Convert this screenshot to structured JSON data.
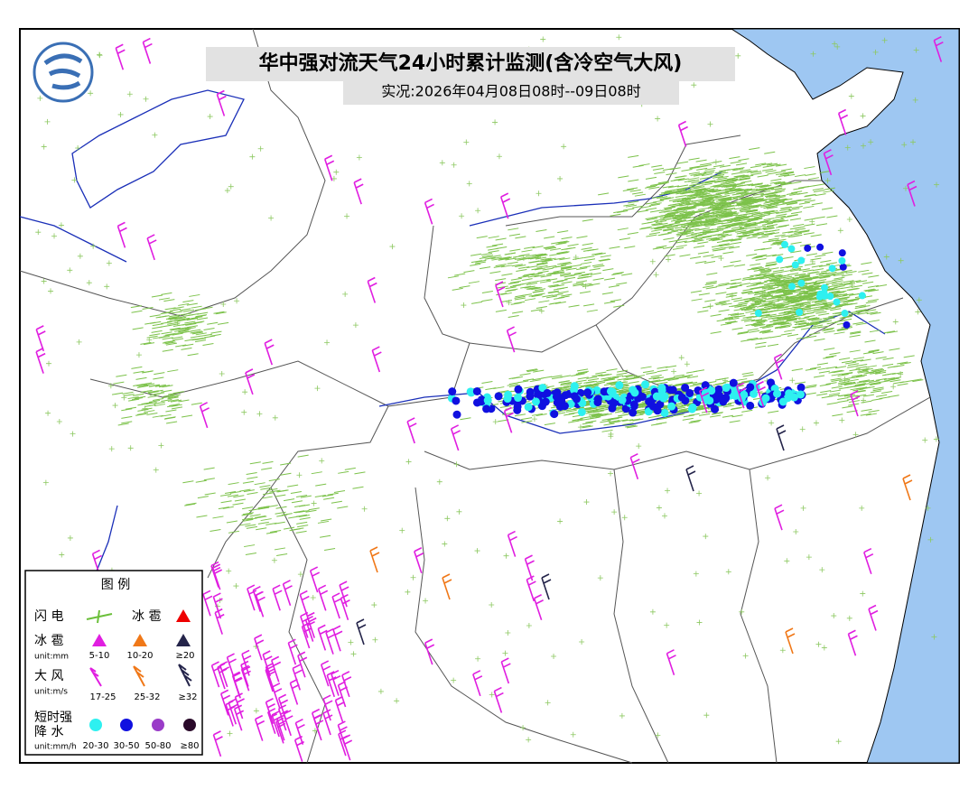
{
  "header": {
    "title": "华中强对流天气24小时累计监测(含冷空气大风)",
    "subtitle": "实况:2026年04月08日08时--09日08时"
  },
  "legend": {
    "title": "图 例",
    "lightning": "闪 电",
    "hail": "冰 雹",
    "hail_size": {
      "label": "冰 雹",
      "unit": "unit:mm",
      "classes": [
        "5-10",
        "10-20",
        "≥20"
      ]
    },
    "wind": {
      "label": "大 风",
      "unit": "unit:m/s",
      "classes": [
        "17-25",
        "25-32",
        "≥32"
      ]
    },
    "rain": {
      "label_line1": "短时强",
      "label_line2": "降 水",
      "unit": "unit:mm/h",
      "classes": [
        "20-30",
        "30-50",
        "50-80",
        "≥80"
      ]
    }
  }
}
